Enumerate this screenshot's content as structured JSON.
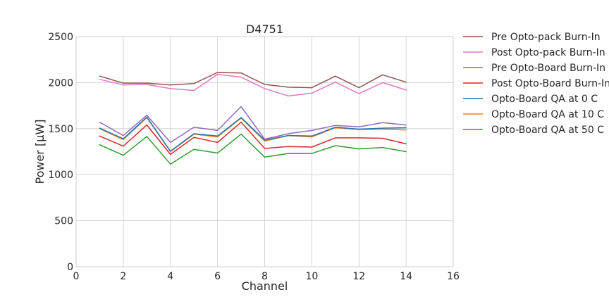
{
  "chart_data": {
    "type": "line",
    "title": "D4751",
    "xlabel": "Channel",
    "ylabel": "Power [μW]",
    "xlim": [
      0,
      16
    ],
    "ylim": [
      0,
      2500
    ],
    "xticks": [
      0,
      2,
      4,
      6,
      8,
      10,
      12,
      14,
      16
    ],
    "yticks": [
      0,
      500,
      1000,
      1500,
      2000,
      2500
    ],
    "grid": true,
    "legend_position": "outside-right",
    "x": [
      1,
      2,
      3,
      4,
      5,
      6,
      7,
      8,
      9,
      10,
      11,
      12,
      13,
      14
    ],
    "series": [
      {
        "name": "Pre Opto-pack Burn-In",
        "color": "#8c564b",
        "values": [
          2070,
          1995,
          1995,
          1975,
          1990,
          2110,
          2105,
          1980,
          1950,
          1945,
          2070,
          1945,
          2085,
          2005
        ]
      },
      {
        "name": "Post Opto-pack Burn-In",
        "color": "#e377c2",
        "values": [
          2035,
          1975,
          1980,
          1935,
          1915,
          2090,
          2060,
          1935,
          1855,
          1885,
          2005,
          1880,
          2000,
          1920
        ]
      },
      {
        "name": "Pre Opto-Board Burn-In",
        "color": "#9467bd",
        "values": [
          1570,
          1425,
          1645,
          1350,
          1515,
          1480,
          1740,
          1385,
          1445,
          1480,
          1535,
          1520,
          1565,
          1540
        ]
      },
      {
        "name": "Post Opto-Board Burn-In",
        "color": "#d62728",
        "values": [
          1420,
          1310,
          1540,
          1220,
          1405,
          1350,
          1570,
          1285,
          1305,
          1300,
          1400,
          1400,
          1395,
          1335
        ]
      },
      {
        "name": "Opto-Board QA at 0 C",
        "color": "#1f77b4",
        "values": [
          1505,
          1390,
          1625,
          1255,
          1445,
          1420,
          1620,
          1375,
          1425,
          1420,
          1515,
          1495,
          1505,
          1510
        ]
      },
      {
        "name": "Opto-Board QA at 10 C",
        "color": "#ff7f0e",
        "values": [
          1500,
          1380,
          1620,
          1250,
          1440,
          1410,
          1615,
          1365,
          1425,
          1410,
          1510,
          1490,
          1495,
          1485
        ]
      },
      {
        "name": "Opto-Board QA at 50 C",
        "color": "#2ca02c",
        "values": [
          1325,
          1210,
          1415,
          1115,
          1275,
          1235,
          1440,
          1190,
          1230,
          1230,
          1315,
          1280,
          1295,
          1250
        ]
      }
    ]
  }
}
